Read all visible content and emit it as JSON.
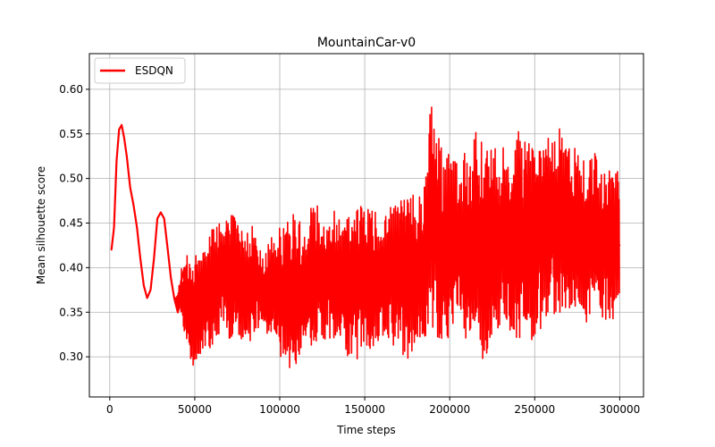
{
  "chart_data": {
    "type": "line",
    "title": "MountainCar-v0",
    "xlabel": "Time steps",
    "ylabel": "Mean silhouette score",
    "xlim": [
      -12000,
      314000
    ],
    "ylim": [
      0.255,
      0.64
    ],
    "xticks": [
      0,
      50000,
      100000,
      150000,
      200000,
      250000,
      300000
    ],
    "xtick_labels": [
      "0",
      "50000",
      "100000",
      "150000",
      "200000",
      "250000",
      "300000"
    ],
    "yticks": [
      0.3,
      0.35,
      0.4,
      0.45,
      0.5,
      0.55,
      0.6
    ],
    "ytick_labels": [
      "0.30",
      "0.35",
      "0.40",
      "0.45",
      "0.50",
      "0.55",
      "0.60"
    ],
    "grid": true,
    "legend_position": "top-left",
    "series": [
      {
        "name": "ESDQN",
        "color": "#ff0000",
        "x": [
          1000,
          2500,
          4000,
          5500,
          7000,
          8500,
          10000,
          12000,
          14000,
          16000,
          18000,
          20000,
          22000,
          24000,
          26000,
          28000,
          30000,
          32000,
          34000,
          36000,
          38000,
          40000,
          42000,
          44000,
          46000,
          48000,
          50000,
          55000,
          60000,
          65000,
          70000,
          75000,
          80000,
          85000,
          90000,
          95000,
          100000,
          105000,
          110000,
          115000,
          120000,
          125000,
          130000,
          135000,
          140000,
          145000,
          150000,
          155000,
          160000,
          165000,
          170000,
          175000,
          180000,
          185000,
          190000,
          195000,
          200000,
          205000,
          210000,
          215000,
          220000,
          225000,
          230000,
          235000,
          240000,
          245000,
          250000,
          255000,
          260000,
          265000,
          270000,
          275000,
          280000,
          285000,
          290000,
          295000,
          300000
        ],
        "y": [
          0.42,
          0.445,
          0.52,
          0.555,
          0.56,
          0.545,
          0.525,
          0.49,
          0.47,
          0.445,
          0.41,
          0.38,
          0.366,
          0.375,
          0.41,
          0.455,
          0.462,
          0.455,
          0.422,
          0.388,
          0.365,
          0.35,
          0.385,
          0.4,
          0.378,
          0.335,
          0.31,
          0.4,
          0.365,
          0.395,
          0.42,
          0.41,
          0.4,
          0.385,
          0.39,
          0.38,
          0.37,
          0.4,
          0.39,
          0.395,
          0.41,
          0.395,
          0.39,
          0.4,
          0.395,
          0.398,
          0.41,
          0.405,
          0.395,
          0.4,
          0.41,
          0.42,
          0.4,
          0.405,
          0.43,
          0.415,
          0.44,
          0.43,
          0.42,
          0.44,
          0.45,
          0.44,
          0.435,
          0.43,
          0.45,
          0.44,
          0.445,
          0.45,
          0.44,
          0.455,
          0.43,
          0.41,
          0.42,
          0.415,
          0.42,
          0.43,
          0.425
        ],
        "band_low": [
          0.42,
          0.445,
          0.52,
          0.555,
          0.56,
          0.545,
          0.525,
          0.49,
          0.47,
          0.445,
          0.41,
          0.38,
          0.366,
          0.375,
          0.41,
          0.455,
          0.462,
          0.455,
          0.422,
          0.388,
          0.365,
          0.345,
          0.35,
          0.325,
          0.295,
          0.29,
          0.285,
          0.31,
          0.3,
          0.33,
          0.32,
          0.325,
          0.315,
          0.32,
          0.33,
          0.32,
          0.3,
          0.285,
          0.28,
          0.315,
          0.31,
          0.32,
          0.315,
          0.305,
          0.3,
          0.285,
          0.305,
          0.3,
          0.31,
          0.315,
          0.305,
          0.295,
          0.3,
          0.32,
          0.33,
          0.315,
          0.32,
          0.33,
          0.315,
          0.3,
          0.295,
          0.32,
          0.335,
          0.33,
          0.32,
          0.31,
          0.31,
          0.34,
          0.35,
          0.345,
          0.35,
          0.345,
          0.33,
          0.345,
          0.34,
          0.34,
          0.335
        ],
        "band_high": [
          0.42,
          0.445,
          0.52,
          0.555,
          0.56,
          0.545,
          0.525,
          0.49,
          0.47,
          0.445,
          0.41,
          0.38,
          0.366,
          0.375,
          0.41,
          0.455,
          0.462,
          0.455,
          0.422,
          0.388,
          0.365,
          0.37,
          0.4,
          0.395,
          0.42,
          0.395,
          0.415,
          0.43,
          0.445,
          0.46,
          0.475,
          0.45,
          0.44,
          0.455,
          0.415,
          0.44,
          0.45,
          0.47,
          0.46,
          0.44,
          0.48,
          0.455,
          0.47,
          0.455,
          0.465,
          0.47,
          0.475,
          0.465,
          0.455,
          0.47,
          0.48,
          0.505,
          0.48,
          0.49,
          0.615,
          0.535,
          0.53,
          0.515,
          0.535,
          0.555,
          0.55,
          0.545,
          0.54,
          0.53,
          0.555,
          0.54,
          0.545,
          0.56,
          0.545,
          0.565,
          0.55,
          0.535,
          0.525,
          0.53,
          0.51,
          0.515,
          0.515
        ]
      }
    ]
  }
}
